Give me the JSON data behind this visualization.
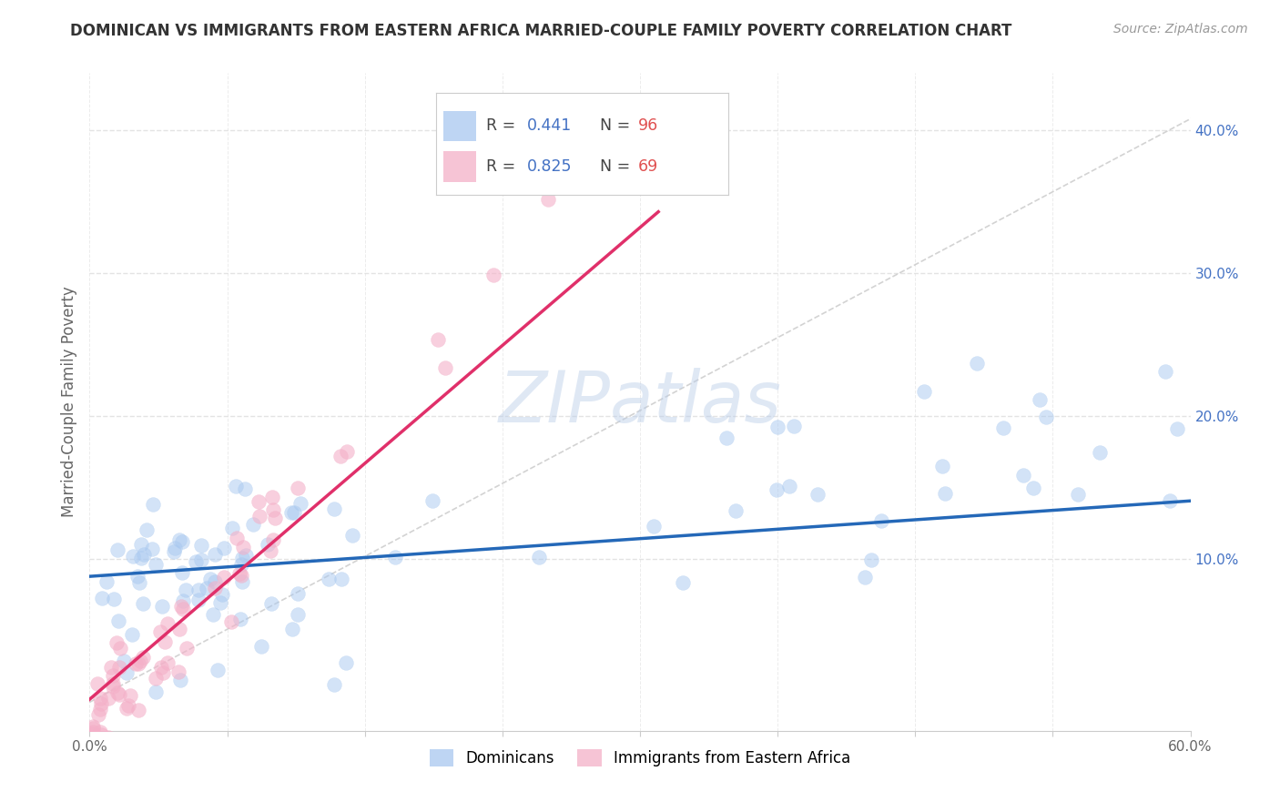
{
  "title": "DOMINICAN VS IMMIGRANTS FROM EASTERN AFRICA MARRIED-COUPLE FAMILY POVERTY CORRELATION CHART",
  "source": "Source: ZipAtlas.com",
  "ylabel": "Married-Couple Family Poverty",
  "xlim": [
    0,
    0.6
  ],
  "ylim": [
    -0.02,
    0.44
  ],
  "xticklabels_left": "0.0%",
  "xticklabels_right": "60.0%",
  "yticklabels_right": [
    "",
    "10.0%",
    "20.0%",
    "30.0%",
    "40.0%"
  ],
  "ytick_vals": [
    0.0,
    0.1,
    0.2,
    0.3,
    0.4
  ],
  "blue_color": "#a8c8f0",
  "pink_color": "#f4b0c8",
  "blue_line_color": "#2468b8",
  "pink_line_color": "#e0306a",
  "ref_line_color": "#c8c8c8",
  "watermark": "ZIPatlas",
  "legend_label1": "Dominicans",
  "legend_label2": "Immigrants from Eastern Africa",
  "blue_r": 0.441,
  "pink_r": 0.825,
  "blue_n": 96,
  "pink_n": 69,
  "blue_intercept": 0.088,
  "blue_slope": 0.088,
  "pink_intercept": 0.002,
  "pink_slope": 1.1,
  "ref_slope": 0.68,
  "grid_color": "#e0e0e0",
  "axis_color": "#cccccc",
  "title_color": "#333333",
  "source_color": "#999999",
  "ylabel_color": "#666666",
  "right_tick_color": "#4472c4",
  "legend_r_color": "#4472c4",
  "legend_n_color": "#e05050",
  "title_fontsize": 12,
  "source_fontsize": 10,
  "axis_fontsize": 11,
  "ylabel_fontsize": 12,
  "watermark_fontsize": 56
}
